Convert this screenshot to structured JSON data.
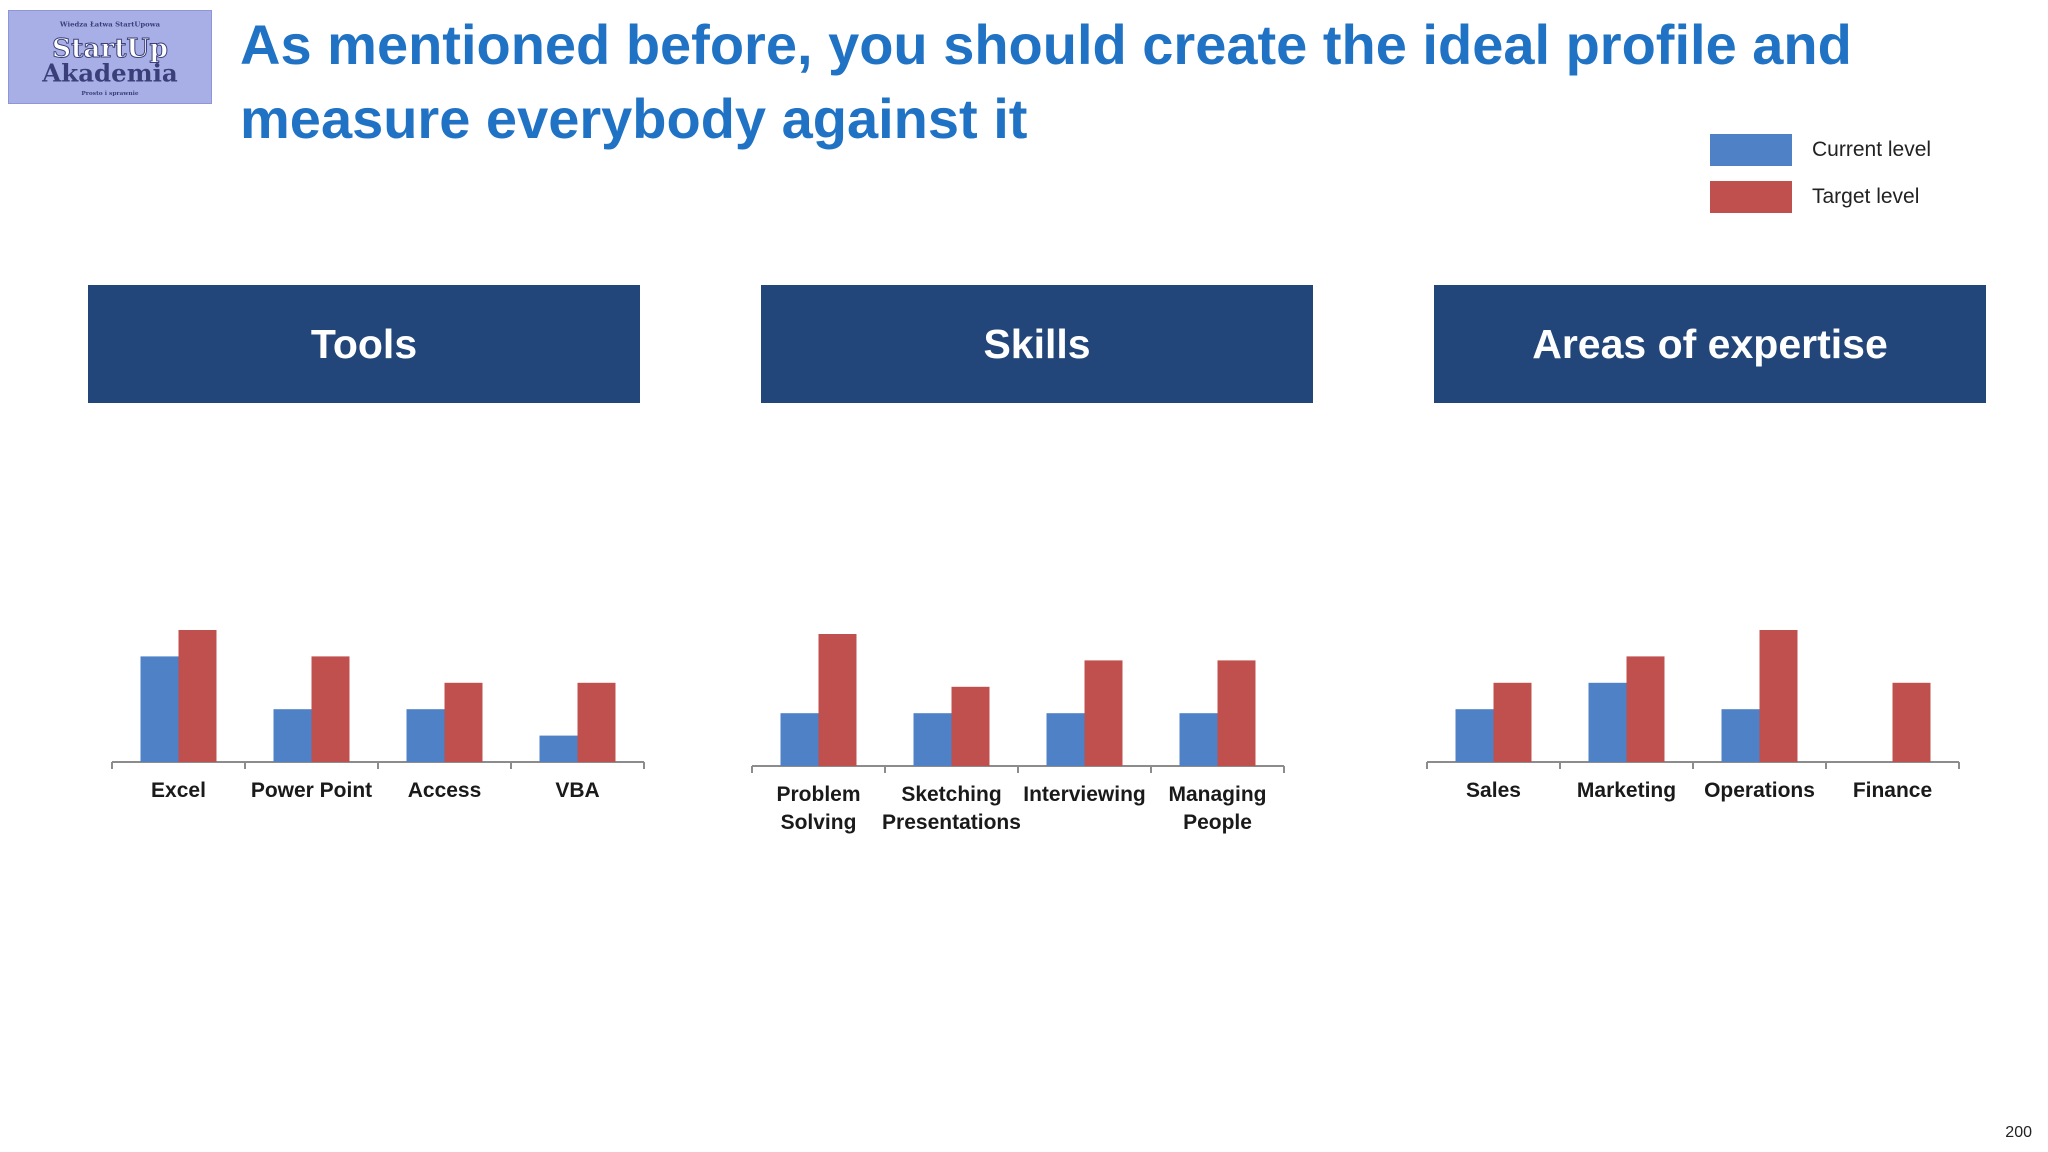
{
  "logo": {
    "top_text": "Wiedza Łatwa StartUpowa",
    "line1": "StartUp",
    "line2": "Akademia",
    "bottom_text": "Prosto i sprawnie"
  },
  "title": "As mentioned before, you should create the ideal profile and measure everybody against it",
  "legend": {
    "items": [
      {
        "label": "Current level",
        "color": "#4f81c7"
      },
      {
        "label": "Target level",
        "color": "#c0504d"
      }
    ]
  },
  "sections": [
    {
      "label": "Tools"
    },
    {
      "label": "Skills"
    },
    {
      "label": "Areas of expertise"
    }
  ],
  "chart_data": [
    {
      "type": "bar",
      "categories": [
        "Excel",
        "Power Point",
        "Access",
        "VBA"
      ],
      "series": [
        {
          "name": "Current level",
          "color": "#4f81c7",
          "values": [
            4,
            2,
            2,
            1
          ]
        },
        {
          "name": "Target level",
          "color": "#c0504d",
          "values": [
            5,
            4,
            3,
            3
          ]
        }
      ],
      "ylim": [
        0,
        5
      ]
    },
    {
      "type": "bar",
      "categories": [
        "Problem Solving",
        "Sketching Presentations",
        "Interviewing",
        "Managing People"
      ],
      "series": [
        {
          "name": "Current level",
          "color": "#4f81c7",
          "values": [
            2,
            2,
            2,
            2
          ]
        },
        {
          "name": "Target level",
          "color": "#c0504d",
          "values": [
            5,
            3,
            4,
            4
          ]
        }
      ],
      "ylim": [
        0,
        5
      ]
    },
    {
      "type": "bar",
      "categories": [
        "Sales",
        "Marketing",
        "Operations",
        "Finance"
      ],
      "series": [
        {
          "name": "Current level",
          "color": "#4f81c7",
          "values": [
            2,
            3,
            2,
            0
          ]
        },
        {
          "name": "Target level",
          "color": "#c0504d",
          "values": [
            3,
            4,
            5,
            3
          ]
        }
      ],
      "ylim": [
        0,
        5
      ]
    }
  ],
  "page_number": "200"
}
